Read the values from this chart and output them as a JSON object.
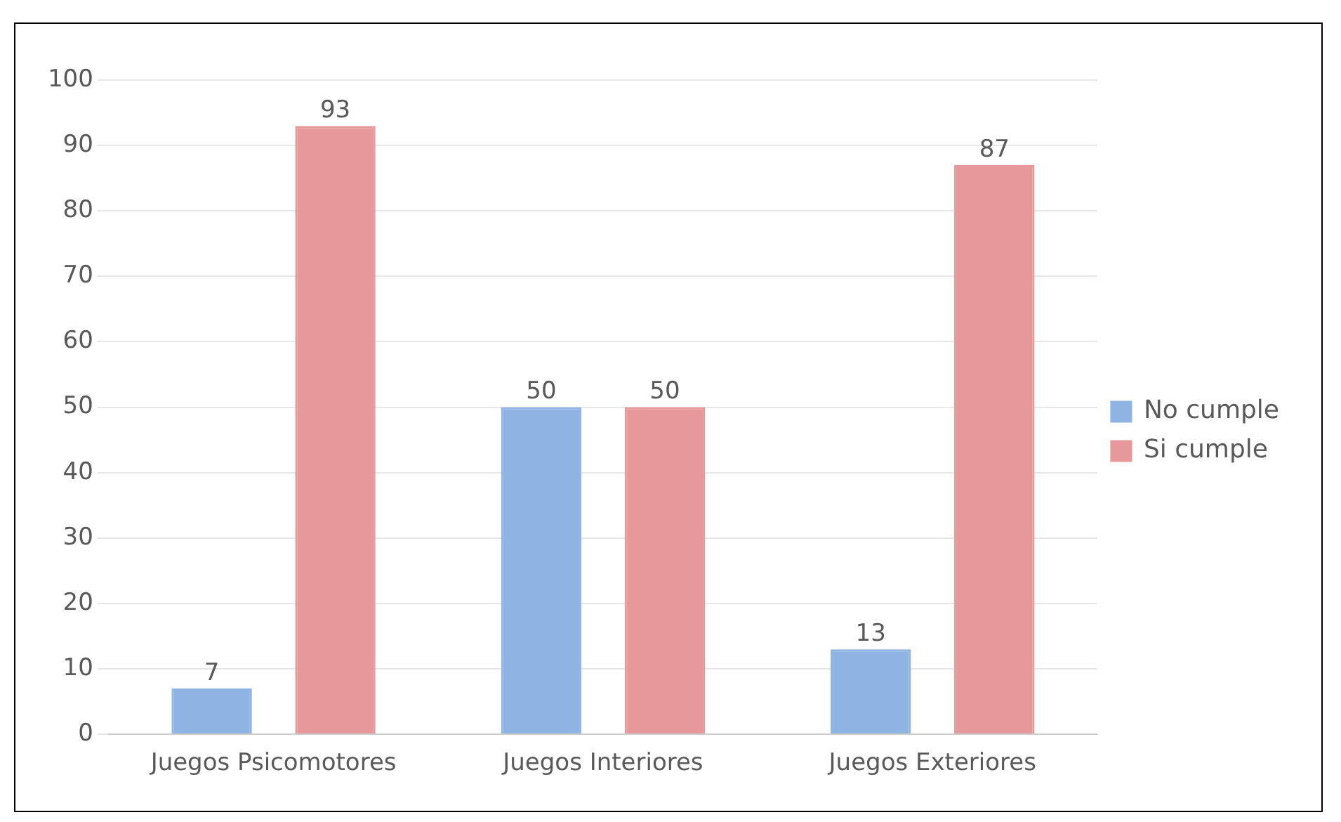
{
  "chart_data": {
    "type": "bar",
    "categories": [
      "Juegos Psicomotores",
      "Juegos Interiores",
      "Juegos Exteriores"
    ],
    "series": [
      {
        "name": "No cumple",
        "color": "#8fb4e3",
        "values": [
          7,
          50,
          13
        ]
      },
      {
        "name": "Si cumple",
        "color": "#e6989a",
        "values": [
          93,
          50,
          87
        ]
      }
    ],
    "ylim": [
      0,
      100
    ],
    "yticks": [
      0,
      10,
      20,
      30,
      40,
      50,
      60,
      70,
      80,
      90,
      100
    ],
    "grid": "y",
    "legend": "right",
    "data_labels": true
  }
}
